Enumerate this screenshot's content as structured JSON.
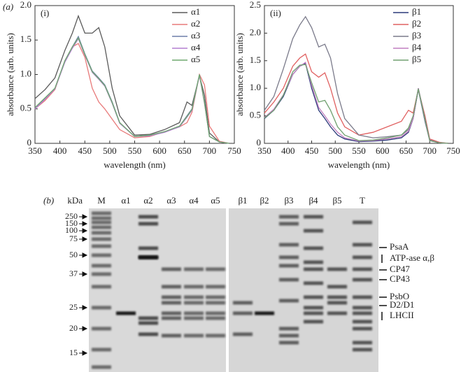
{
  "panels": {
    "a": "(a)",
    "b": "(b)"
  },
  "chart_data": [
    {
      "type": "line",
      "annotation": "(i)",
      "xlabel": "wavelength (nm)",
      "ylabel": "absorbance (arb. units)",
      "x": [
        350,
        370,
        390,
        410,
        425,
        437,
        450,
        465,
        478,
        490,
        505,
        520,
        550,
        580,
        610,
        640,
        655,
        665,
        680,
        690,
        700,
        720,
        740
      ],
      "xlim": [
        350,
        750
      ],
      "xticks": [
        350,
        400,
        450,
        500,
        550,
        600,
        650,
        700,
        750
      ],
      "ylim": [
        0,
        2
      ],
      "yticks": [
        0,
        0.5,
        {
          "value": 1,
          "label": "1.0"
        },
        1.5,
        {
          "value": 2,
          "label": "2.0"
        }
      ],
      "series": [
        {
          "name": "α1",
          "color": "#5a5a5a",
          "values": [
            0.65,
            0.78,
            0.95,
            1.35,
            1.6,
            1.85,
            1.6,
            1.6,
            1.68,
            1.4,
            0.8,
            0.4,
            0.12,
            0.13,
            0.2,
            0.3,
            0.6,
            0.55,
            0.98,
            0.7,
            0.15,
            0.02,
            0
          ]
        },
        {
          "name": "α2",
          "color": "#e87a7a",
          "values": [
            0.5,
            0.62,
            0.78,
            1.2,
            1.4,
            1.45,
            1.25,
            0.8,
            0.6,
            0.5,
            0.35,
            0.2,
            0.08,
            0.1,
            0.17,
            0.24,
            0.3,
            0.45,
            1.0,
            0.85,
            0.25,
            0.03,
            0
          ]
        },
        {
          "name": "α3",
          "color": "#6d7fa8",
          "values": [
            0.5,
            0.65,
            0.8,
            1.2,
            1.4,
            1.55,
            1.3,
            1.05,
            0.95,
            0.85,
            0.6,
            0.3,
            0.1,
            0.12,
            0.17,
            0.25,
            0.4,
            0.5,
            1.0,
            0.6,
            0.1,
            0.02,
            0
          ]
        },
        {
          "name": "α4",
          "color": "#b47fd0",
          "values": [
            0.5,
            0.64,
            0.79,
            1.18,
            1.38,
            1.52,
            1.28,
            1.03,
            0.93,
            0.83,
            0.58,
            0.29,
            0.1,
            0.11,
            0.16,
            0.24,
            0.38,
            0.48,
            0.99,
            0.58,
            0.1,
            0.02,
            0
          ]
        },
        {
          "name": "α5",
          "color": "#6fa86f",
          "values": [
            0.52,
            0.66,
            0.8,
            1.2,
            1.4,
            1.53,
            1.29,
            1.04,
            0.94,
            0.84,
            0.59,
            0.3,
            0.1,
            0.12,
            0.17,
            0.25,
            0.39,
            0.49,
            1.0,
            0.59,
            0.1,
            0.02,
            0
          ]
        }
      ]
    },
    {
      "type": "line",
      "annotation": "(ii)",
      "xlabel": "wavelength (nm)",
      "ylabel": "absorbance (arb. units)",
      "x": [
        350,
        370,
        390,
        410,
        425,
        437,
        450,
        465,
        478,
        490,
        505,
        520,
        550,
        580,
        610,
        640,
        655,
        665,
        676,
        690,
        700,
        720,
        740
      ],
      "xlim": [
        350,
        750
      ],
      "xticks": [
        350,
        400,
        450,
        500,
        550,
        600,
        650,
        700,
        750
      ],
      "ylim": [
        0,
        2.5
      ],
      "yticks": [
        0,
        0.5,
        {
          "value": 1,
          "label": "1.0"
        },
        1.5,
        {
          "value": 2,
          "label": "2.0"
        },
        2.5
      ],
      "series": [
        {
          "name": "β1",
          "color": "#2b3a7a",
          "values": [
            0.45,
            0.6,
            0.85,
            1.25,
            1.4,
            1.45,
            1.0,
            0.6,
            0.45,
            0.3,
            0.15,
            0.08,
            0.03,
            0.04,
            0.06,
            0.1,
            0.2,
            0.45,
            0.98,
            0.4,
            0.05,
            0.01,
            0
          ]
        },
        {
          "name": "β2",
          "color": "#e06060",
          "values": [
            0.55,
            0.75,
            1.0,
            1.4,
            1.55,
            1.62,
            1.3,
            1.2,
            1.28,
            1.0,
            0.55,
            0.3,
            0.15,
            0.2,
            0.3,
            0.4,
            0.6,
            0.55,
            0.98,
            0.5,
            0.08,
            0.02,
            0
          ]
        },
        {
          "name": "β3",
          "color": "#7a7a8a",
          "values": [
            0.6,
            0.85,
            1.35,
            1.9,
            2.15,
            2.3,
            2.1,
            1.75,
            1.8,
            1.55,
            0.9,
            0.45,
            0.15,
            0.1,
            0.12,
            0.15,
            0.25,
            0.45,
            1.0,
            0.45,
            0.06,
            0.01,
            0
          ]
        },
        {
          "name": "β4",
          "color": "#c07fc0",
          "values": [
            0.47,
            0.62,
            0.88,
            1.25,
            1.4,
            1.47,
            1.05,
            0.65,
            0.5,
            0.35,
            0.2,
            0.1,
            0.04,
            0.05,
            0.08,
            0.12,
            0.22,
            0.46,
            1.0,
            0.42,
            0.05,
            0.01,
            0
          ]
        },
        {
          "name": "β5",
          "color": "#70a070",
          "values": [
            0.46,
            0.6,
            0.87,
            1.3,
            1.42,
            1.43,
            1.1,
            0.75,
            0.78,
            0.6,
            0.3,
            0.15,
            0.05,
            0.06,
            0.1,
            0.15,
            0.28,
            0.5,
            0.99,
            0.43,
            0.05,
            0.01,
            0
          ]
        }
      ]
    }
  ],
  "gel": {
    "unit_label": "kDa",
    "lanes": [
      "M",
      "α1",
      "α2",
      "α3",
      "α4",
      "α5",
      "β1",
      "β2",
      "β3",
      "β4",
      "β5",
      "T"
    ],
    "markers": [
      250,
      150,
      100,
      75,
      50,
      37,
      25,
      20,
      15
    ],
    "annotations": [
      "PsaA",
      "ATP-ase α,β",
      "CP47",
      "CP43",
      "PsbO",
      "D2/D1",
      "LHCII"
    ]
  }
}
